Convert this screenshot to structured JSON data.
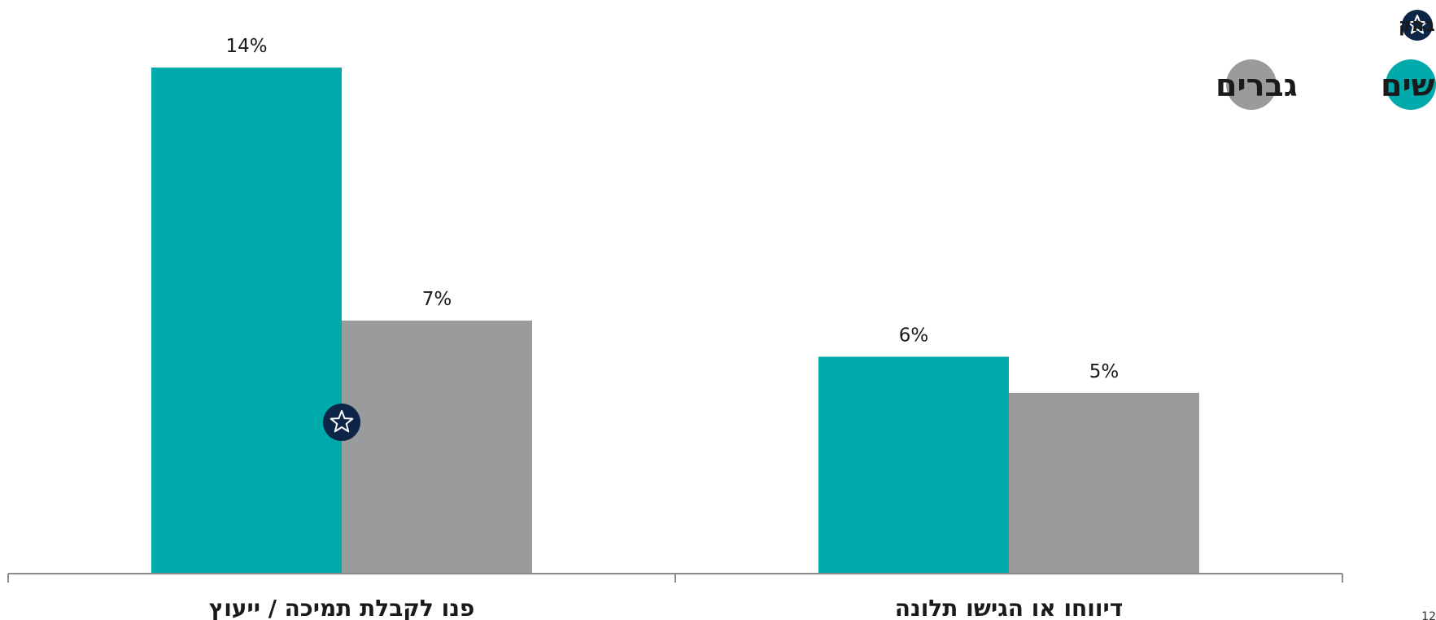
{
  "chart_data": {
    "type": "bar",
    "orientation": "rtl",
    "categories": [
      "דיווחו או הגישו תלונה",
      "פנו לקבלת תמיכה / ייעוץ"
    ],
    "series": [
      {
        "name": "נשים",
        "values": [
          6,
          14
        ],
        "labels": [
          "6%",
          "14%"
        ],
        "color": "#00AAAA"
      },
      {
        "name": "גברים",
        "values": [
          5,
          7
        ],
        "labels": [
          "5%",
          "7%"
        ],
        "color": "#9A9B9C"
      }
    ],
    "significant": [
      {
        "category": 1,
        "series": 0
      }
    ],
    "ylim": [
      0,
      14
    ],
    "grid": false,
    "legend_position": "top-right",
    "significance_legend": "הבדל מובהק",
    "significance_icon": "star-icon",
    "significance_color": "#0D2547"
  },
  "page_number": "12"
}
